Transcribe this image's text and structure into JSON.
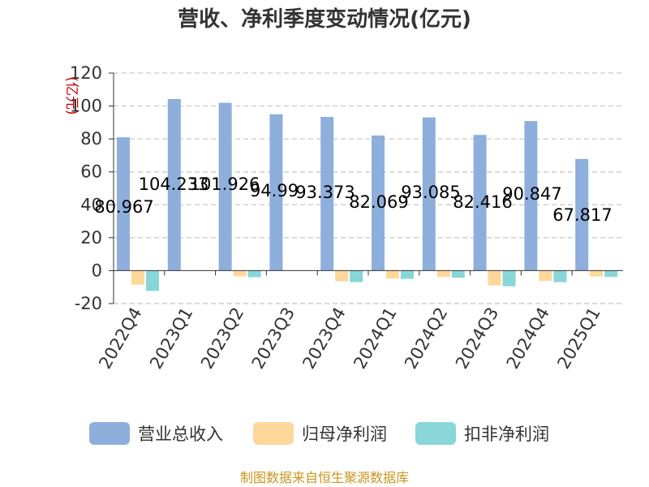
{
  "chart_data": {
    "type": "bar",
    "title": "营收、净利季度变动情况(亿元)",
    "ylabel": "(亿元)",
    "ylim": [
      -20,
      120
    ],
    "yticks": [
      -20,
      0,
      20,
      40,
      60,
      80,
      100,
      120
    ],
    "grid": true,
    "legend_position": "bottom",
    "categories": [
      "2022Q4",
      "2023Q1",
      "2023Q2",
      "2023Q3",
      "2023Q4",
      "2024Q1",
      "2024Q2",
      "2024Q3",
      "2024Q4",
      "2025Q1"
    ],
    "series": [
      {
        "name": "营业总收入",
        "color": "#8eaedb",
        "values": [
          80.967,
          104.233,
          101.926,
          94.99,
          93.373,
          82.069,
          93.085,
          82.416,
          90.847,
          67.817
        ]
      },
      {
        "name": "归母净利润",
        "color": "#fdd89a",
        "values": [
          -8.5,
          0,
          -3.5,
          0,
          -6.5,
          -4.8,
          -3.8,
          -9.0,
          -6.2,
          -3.5
        ]
      },
      {
        "name": "扣非净利润",
        "color": "#88d6d8",
        "values": [
          -12.3,
          0,
          -4.0,
          0,
          -7.0,
          -5.0,
          -4.3,
          -9.5,
          -7.0,
          -3.8
        ]
      }
    ],
    "data_labels": [
      "80.967",
      "104.233",
      "101.926",
      "94.99",
      "93.373",
      "82.069",
      "93.085",
      "82.416",
      "90.847",
      "67.817"
    ]
  },
  "source_text": "制图数据来自恒生聚源数据库"
}
